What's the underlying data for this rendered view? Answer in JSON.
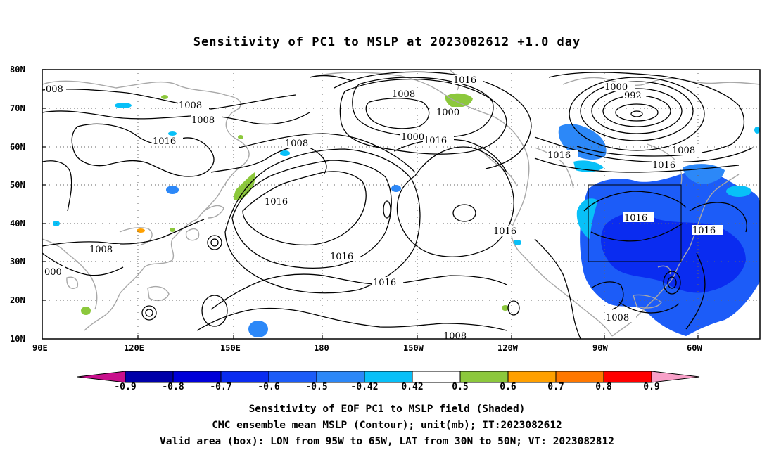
{
  "title": "Sensitivity of PC1 to MSLP at 2023082612 +1.0 day",
  "lat_labels": [
    "80N",
    "70N",
    "60N",
    "50N",
    "40N",
    "30N",
    "20N",
    "10N"
  ],
  "lon_labels": [
    "90E",
    "120E",
    "150E",
    "180",
    "150W",
    "120W",
    "90W",
    "60W"
  ],
  "contour_labels": [
    "008",
    "1008",
    "1008",
    "1016",
    "1008",
    "1008",
    "1000",
    "1016",
    "1016",
    "1000",
    "992",
    "1008",
    "1016",
    "1016",
    "1016",
    "1016",
    "1016",
    "1016",
    "1016",
    "1008",
    "000",
    "1016",
    "1008",
    "1016",
    "1008",
    "1000"
  ],
  "colorbar": {
    "labels": [
      "-0.9",
      "-0.8",
      "-0.7",
      "-0.6",
      "-0.5",
      "-0.42",
      "0.42",
      "0.5",
      "0.6",
      "0.7",
      "0.8",
      "0.9"
    ],
    "colors": [
      "#c8108c",
      "#0000a8",
      "#0000d8",
      "#0a2cf0",
      "#1c5cf8",
      "#2c88f8",
      "#08c0f8",
      "#ffffff",
      "#8cc83c",
      "#ffa000",
      "#ff7800",
      "#ff4000",
      "#ff0000",
      "#f8a0c8"
    ]
  },
  "captions": [
    "Sensitivity of EOF PC1 to MSLP field (Shaded)",
    "CMC ensemble mean MSLP (Contour); unit(mb); IT:2023082612",
    "Valid area (box): LON from 95W to 65W, LAT from 30N to 50N; VT: 2023082812"
  ]
}
